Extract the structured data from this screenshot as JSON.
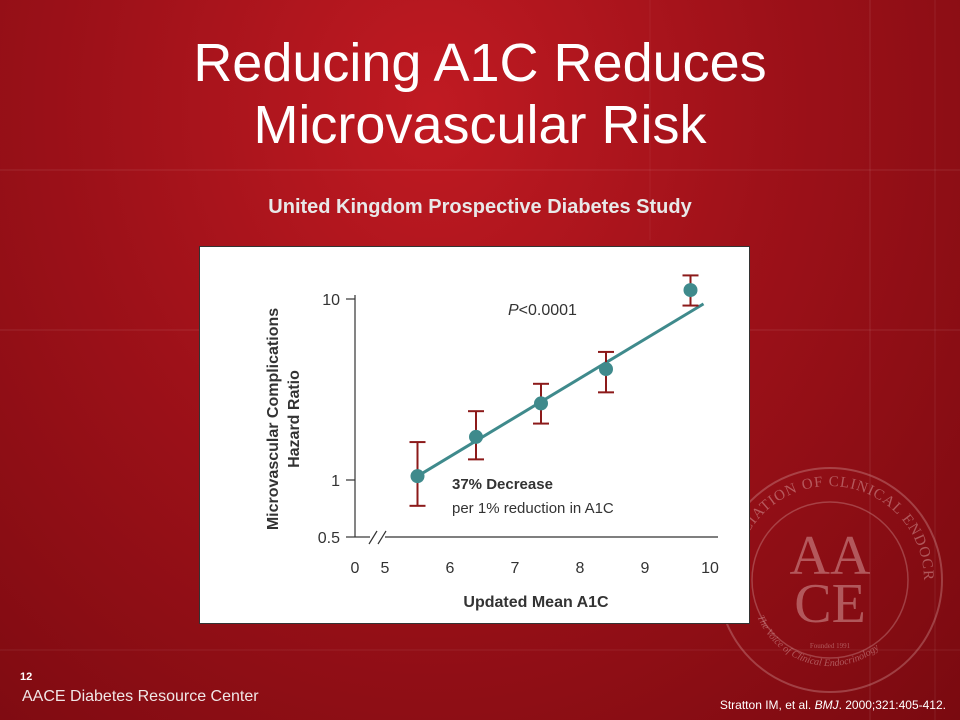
{
  "slide": {
    "title_line1": "Reducing A1C Reduces",
    "title_line2": "Microvascular Risk",
    "subtitle": "United Kingdom Prospective Diabetes Study",
    "slide_number": "12",
    "footer_left": "AACE Diabetes Resource Center",
    "citation_pre": "Stratton IM, et al. ",
    "citation_journal": "BMJ",
    "citation_post": ". 2000;321:405-412.",
    "seal": {
      "ring_text_top": "ASSOCIATION OF CLINICAL ENDOCRINOLOGISTS",
      "ring_text_bottom": "The Voice of Clinical Endocrinology",
      "monogram_top": "AA",
      "monogram_bottom": "CE",
      "founded": "Founded 1991"
    },
    "colors": {
      "background": "#a0121a",
      "panel": "#ffffff",
      "series": "#3f8a8c",
      "error_bar": "#8c1a1a"
    }
  },
  "chart_data": {
    "type": "scatter",
    "xlabel": "Updated Mean A1C",
    "ylabel_line1": "Microvascular Complications",
    "ylabel_line2": "Hazard Ratio",
    "x_ticks": [
      "0",
      "5",
      "6",
      "7",
      "8",
      "9",
      "10"
    ],
    "y_ticks": [
      "0.5",
      "1",
      "10"
    ],
    "y_scale": "log",
    "x_axis_break": true,
    "ylim": [
      0.5,
      10
    ],
    "xlim": [
      5,
      10
    ],
    "points": [
      {
        "x": 5.5,
        "y": 1.05,
        "lo": 0.72,
        "hi": 1.62
      },
      {
        "x": 6.4,
        "y": 1.73,
        "lo": 1.3,
        "hi": 2.4
      },
      {
        "x": 7.4,
        "y": 2.65,
        "lo": 2.05,
        "hi": 3.4
      },
      {
        "x": 8.4,
        "y": 4.1,
        "lo": 3.05,
        "hi": 5.1
      },
      {
        "x": 9.7,
        "y": 11.2,
        "lo": 9.2,
        "hi": 13.5
      }
    ],
    "trend": {
      "x": [
        5.5,
        9.9
      ],
      "y": [
        1.05,
        9.4
      ]
    },
    "p_value_prefix": "P",
    "p_value_text": "<0.0001",
    "annotation_line1": "37% Decrease",
    "annotation_line2": "per 1% reduction in A1C"
  }
}
